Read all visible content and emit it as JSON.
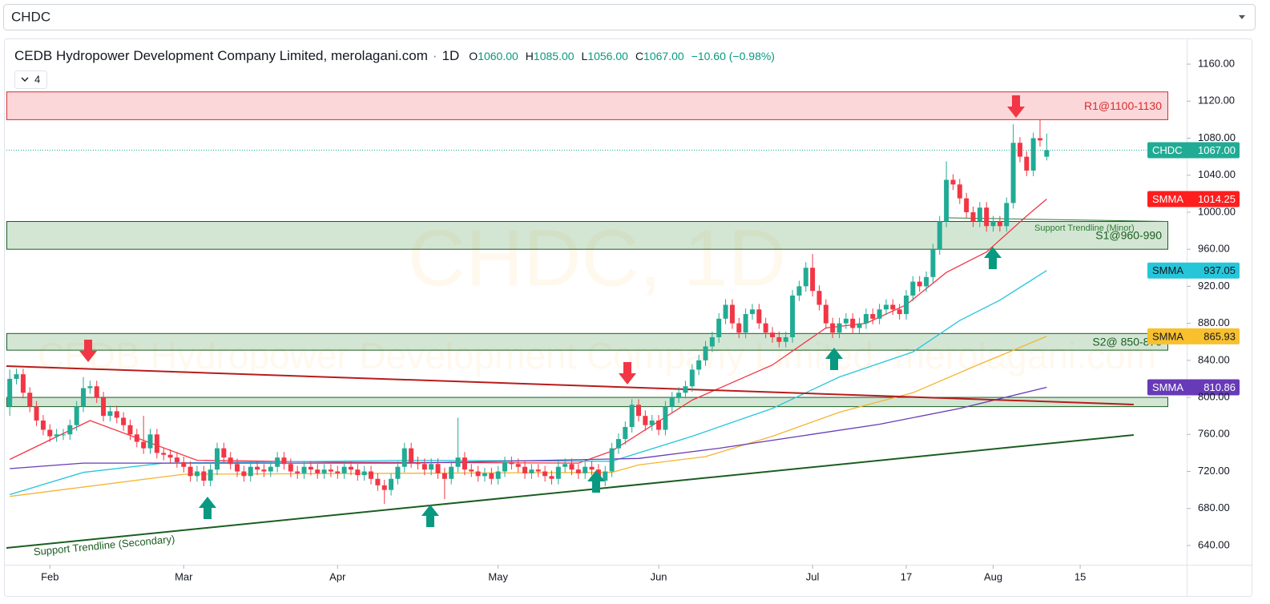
{
  "symbol_select": "CHDC",
  "legend": {
    "title": "CEDB Hydropower Development Company Limited, merolagani.com",
    "interval": "1D",
    "ohlc": [
      {
        "key": "O",
        "value": "1060.00"
      },
      {
        "key": "H",
        "value": "1085.00"
      },
      {
        "key": "L",
        "value": "1056.00"
      },
      {
        "key": "C",
        "value": "1067.00"
      }
    ],
    "change": "−10.60 (−0.98%)",
    "indicators": "4"
  },
  "chart_data": {
    "type": "candlestick",
    "watermark": {
      "symbol": "CHDC, 1D",
      "name": "CEDB Hydropower Development Company Limited, merolagani.com"
    },
    "up_color": "#22ab94",
    "down_color": "#f23645",
    "xlim": [
      -0.5,
      175.8
    ],
    "xticks": [
      {
        "value": 6,
        "label": "Feb"
      },
      {
        "value": 26,
        "label": "Mar"
      },
      {
        "value": 49,
        "label": "Apr"
      },
      {
        "value": 73,
        "label": "May"
      },
      {
        "value": 97,
        "label": "Jun"
      },
      {
        "value": 120,
        "label": "Jul"
      },
      {
        "value": 134,
        "label": "17"
      },
      {
        "value": 147,
        "label": "Aug"
      },
      {
        "value": 160,
        "label": "15"
      }
    ],
    "ylim": [
      619.2,
      1186
    ],
    "yticks": [
      {
        "value": 640,
        "label": "640.00"
      },
      {
        "value": 680,
        "label": "680.00"
      },
      {
        "value": 720,
        "label": "720.00"
      },
      {
        "value": 760,
        "label": "760.00"
      },
      {
        "value": 800,
        "label": "800.00"
      },
      {
        "value": 840,
        "label": "840.00"
      },
      {
        "value": 880,
        "label": "880.00"
      },
      {
        "value": 920,
        "label": "920.00"
      },
      {
        "value": 960,
        "label": "960.00"
      },
      {
        "value": 1000,
        "label": "1000.00"
      },
      {
        "value": 1040,
        "label": "1040.00"
      },
      {
        "value": 1080,
        "label": "1080.00"
      },
      {
        "value": 1120,
        "label": "1120.00"
      },
      {
        "value": 1160,
        "label": "1160.00"
      }
    ],
    "open": [
      790,
      820,
      825,
      805,
      790,
      775,
      765,
      758,
      760,
      760,
      770,
      790,
      810,
      812,
      800,
      780,
      785,
      778,
      770,
      760,
      752,
      745,
      760,
      740,
      738,
      735,
      730,
      725,
      715,
      720,
      710,
      722,
      745,
      735,
      728,
      720,
      715,
      725,
      722,
      720,
      725,
      735,
      728,
      720,
      718,
      725,
      722,
      718,
      722,
      720,
      718,
      725,
      722,
      716,
      720,
      712,
      705,
      700,
      712,
      725,
      745,
      730,
      728,
      722,
      728,
      718,
      712,
      725,
      735,
      722,
      720,
      715,
      718,
      712,
      720,
      730,
      728,
      725,
      718,
      722,
      720,
      715,
      712,
      725,
      728,
      722,
      718,
      725,
      722,
      710,
      720,
      745,
      755,
      768,
      792,
      780,
      770,
      775,
      765,
      790,
      800,
      805,
      812,
      830,
      840,
      855,
      865,
      885,
      900,
      880,
      870,
      890,
      895,
      880,
      870,
      865,
      860,
      865,
      910,
      920,
      940,
      915,
      900,
      880,
      870,
      880,
      885,
      875,
      880,
      890,
      885,
      895,
      900,
      895,
      890,
      910,
      925,
      920,
      930,
      960,
      990,
      1035,
      1030,
      1015,
      1000,
      990,
      1005,
      985,
      990,
      985,
      1010,
      1075,
      1060,
      1045,
      1080,
      1060
    ],
    "high": [
      830,
      831,
      831,
      811,
      796,
      781,
      771,
      766,
      766,
      776,
      796,
      822,
      818,
      818,
      806,
      791,
      791,
      784,
      776,
      766,
      780,
      766,
      766,
      746,
      744,
      741,
      736,
      731,
      726,
      726,
      728,
      751,
      751,
      741,
      734,
      726,
      731,
      731,
      728,
      731,
      741,
      741,
      734,
      726,
      731,
      731,
      728,
      728,
      728,
      726,
      731,
      731,
      728,
      726,
      726,
      718,
      711,
      718,
      731,
      751,
      751,
      736,
      734,
      734,
      734,
      724,
      731,
      778,
      741,
      728,
      726,
      724,
      724,
      726,
      736,
      736,
      734,
      731,
      728,
      728,
      726,
      721,
      731,
      734,
      734,
      728,
      731,
      731,
      728,
      726,
      751,
      761,
      774,
      798,
      798,
      786,
      781,
      781,
      796,
      806,
      811,
      818,
      836,
      846,
      861,
      871,
      891,
      906,
      906,
      886,
      896,
      901,
      901,
      886,
      876,
      871,
      871,
      916,
      926,
      946,
      955,
      921,
      906,
      886,
      886,
      891,
      891,
      886,
      896,
      896,
      901,
      906,
      906,
      901,
      916,
      931,
      931,
      936,
      966,
      996,
      1055,
      1041,
      1036,
      1021,
      1006,
      1011,
      1011,
      996,
      996,
      1016,
      1095,
      1081,
      1066,
      1086,
      1100,
      1085
    ],
    "low": [
      780,
      814,
      799,
      784,
      769,
      759,
      752,
      752,
      754,
      754,
      764,
      784,
      804,
      794,
      774,
      774,
      772,
      764,
      754,
      746,
      739,
      739,
      734,
      732,
      729,
      724,
      719,
      709,
      709,
      704,
      704,
      716,
      729,
      722,
      714,
      709,
      709,
      716,
      714,
      714,
      719,
      722,
      714,
      712,
      712,
      716,
      712,
      712,
      714,
      712,
      712,
      716,
      710,
      710,
      706,
      699,
      685,
      694,
      706,
      719,
      724,
      722,
      716,
      716,
      712,
      690,
      706,
      719,
      716,
      714,
      709,
      709,
      706,
      706,
      714,
      722,
      719,
      712,
      712,
      714,
      709,
      706,
      706,
      719,
      716,
      712,
      712,
      716,
      704,
      704,
      714,
      739,
      749,
      762,
      774,
      764,
      764,
      759,
      759,
      784,
      794,
      799,
      806,
      824,
      834,
      849,
      859,
      879,
      874,
      864,
      864,
      884,
      874,
      864,
      859,
      854,
      854,
      859,
      904,
      914,
      909,
      894,
      874,
      864,
      864,
      874,
      869,
      869,
      874,
      879,
      879,
      889,
      889,
      884,
      884,
      904,
      914,
      914,
      924,
      954,
      984,
      1024,
      1009,
      994,
      984,
      984,
      979,
      979,
      979,
      979,
      1004,
      1054,
      1039,
      1039,
      1071,
      1056
    ],
    "close": [
      820,
      825,
      805,
      790,
      775,
      765,
      758,
      760,
      760,
      770,
      790,
      810,
      812,
      800,
      780,
      785,
      778,
      770,
      760,
      752,
      745,
      760,
      740,
      738,
      735,
      730,
      725,
      715,
      720,
      710,
      722,
      745,
      735,
      728,
      720,
      715,
      725,
      722,
      720,
      725,
      735,
      728,
      720,
      718,
      725,
      722,
      718,
      722,
      720,
      718,
      725,
      722,
      716,
      720,
      712,
      705,
      700,
      712,
      725,
      745,
      730,
      728,
      722,
      728,
      718,
      712,
      725,
      735,
      722,
      720,
      715,
      718,
      712,
      720,
      730,
      728,
      725,
      718,
      722,
      720,
      715,
      712,
      725,
      728,
      722,
      718,
      725,
      722,
      710,
      720,
      745,
      755,
      768,
      792,
      780,
      770,
      775,
      765,
      790,
      800,
      805,
      812,
      830,
      840,
      855,
      865,
      885,
      900,
      880,
      870,
      890,
      895,
      880,
      870,
      865,
      860,
      865,
      910,
      920,
      940,
      915,
      900,
      880,
      870,
      880,
      885,
      875,
      880,
      890,
      885,
      895,
      900,
      895,
      890,
      910,
      925,
      920,
      930,
      960,
      990,
      1035,
      1030,
      1015,
      1000,
      990,
      1005,
      985,
      990,
      985,
      1010,
      1075,
      1060,
      1045,
      1080,
      1077.6,
      1067
    ],
    "series": [
      {
        "name": "SMMA",
        "color": "#f23645",
        "x": [
          0,
          12,
          28,
          50,
          85,
          90,
          102,
          114,
          122,
          128,
          134,
          140,
          146,
          152,
          155
        ],
        "values": [
          733,
          775,
          732,
          730,
          729,
          742,
          797,
          835,
          875,
          880,
          900,
          935,
          957,
          996,
          1014.25
        ]
      },
      {
        "name": "SMMA",
        "color": "#26c6da",
        "x": [
          0,
          11,
          23,
          60,
          90,
          102,
          114,
          124,
          135,
          142,
          148,
          155
        ],
        "values": [
          695,
          719,
          729,
          732,
          731,
          758,
          788,
          822,
          849,
          883,
          905,
          937.05
        ]
      },
      {
        "name": "SMMA",
        "color": "#f5b431",
        "x": [
          0,
          26,
          60,
          90,
          94,
          104,
          114,
          124,
          135,
          145,
          155
        ],
        "values": [
          693,
          717,
          718,
          719,
          727,
          736,
          758,
          784,
          805,
          836,
          865.93
        ]
      },
      {
        "name": "SMMA",
        "color": "#673ab7",
        "x": [
          0,
          11,
          60,
          94,
          106,
          118,
          130,
          142,
          155
        ],
        "values": [
          723,
          729,
          729,
          734,
          745,
          758,
          771,
          788,
          810.86
        ]
      }
    ],
    "zones": [
      {
        "from": 1100,
        "to": 1130,
        "label": "R1@1100-1130",
        "color": "#d32f2f",
        "fill": "rgba(242,54,69,0.2)"
      },
      {
        "from": 960,
        "to": 990,
        "label": "S1@960-990",
        "color": "#1b5e20",
        "fill": "rgba(56,142,60,0.22)"
      },
      {
        "from": 851,
        "to": 869,
        "label": "S2@ 850-870",
        "color": "#1b5e20",
        "fill": "rgba(56,142,60,0.22)"
      },
      {
        "from": 790,
        "to": 800,
        "color": "#1b5e20",
        "fill": "rgba(56,142,60,0.22)"
      }
    ],
    "trendlines": [
      {
        "x": [
          -0.5,
          168
        ],
        "values": [
          833.8,
          792.3
        ],
        "color": "#b71c1c"
      },
      {
        "x": [
          -0.5,
          168
        ],
        "values": [
          637.4,
          759.4
        ],
        "color": "#1b5e20",
        "label": "Support Trendline (Secondary)"
      },
      {
        "x": [
          140,
          173
        ],
        "values": [
          994,
          990
        ],
        "color": "#2e7d32",
        "label": "Support Trendline (Minor)"
      }
    ],
    "price_labels": [
      {
        "name": "CHDC",
        "value": 1067,
        "label": "1067.00",
        "color": "#22ab94",
        "text_color": "#ffffff"
      },
      {
        "name": "SMMA",
        "value": 1014.25,
        "label": "1014.25",
        "color": "#ff1e1e",
        "text_color": "#ffffff"
      },
      {
        "name": "SMMA",
        "value": 937.05,
        "label": "937.05",
        "color": "#26c6da",
        "text_color": "#131722"
      },
      {
        "name": "SMMA",
        "value": 865.93,
        "label": "865.93",
        "color": "#f9c02e",
        "text_color": "#131722"
      },
      {
        "name": "SMMA",
        "value": 810.86,
        "label": "810.86",
        "color": "#673ab7",
        "text_color": "#ffffff"
      }
    ]
  }
}
